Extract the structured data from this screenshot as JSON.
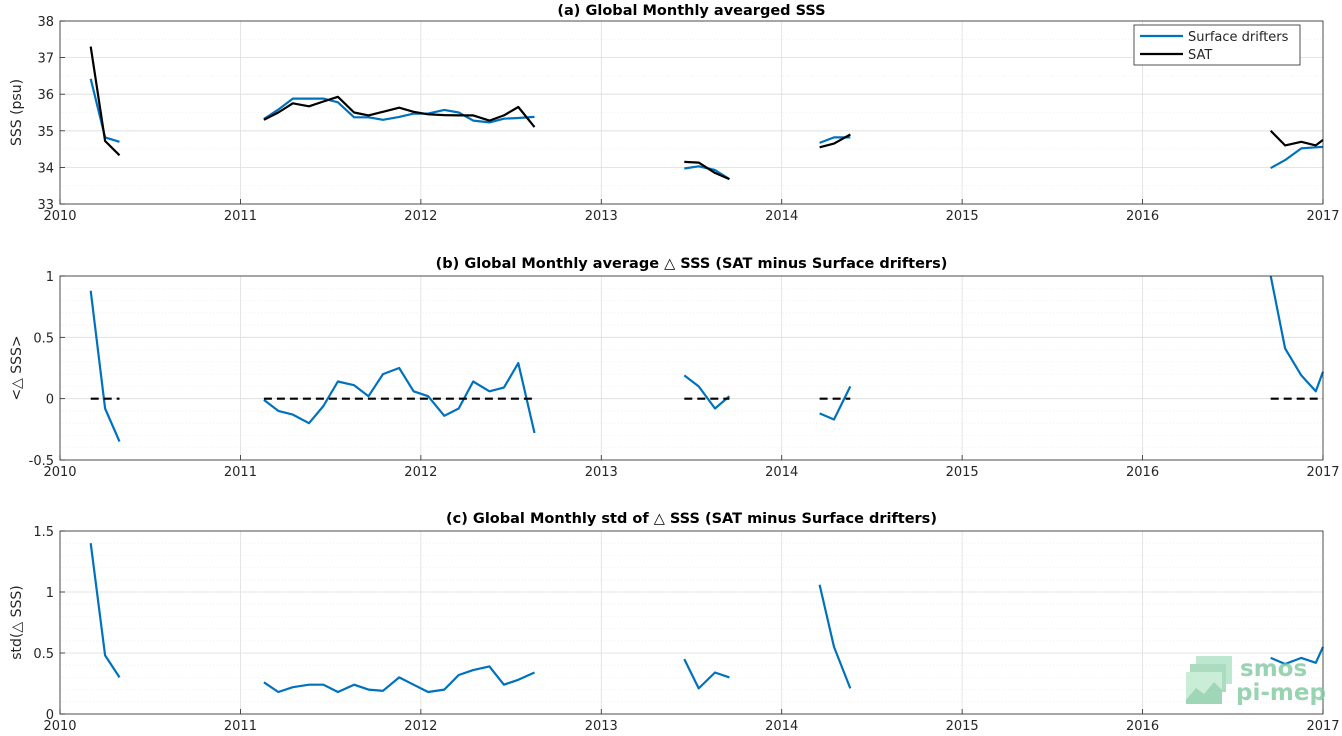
{
  "colors": {
    "drifters": "#0072bd",
    "sat": "#000000",
    "zero": "#000000",
    "grid": "#e6e6e6",
    "logo": "#7fc9a0"
  },
  "logo": {
    "line1": "smos",
    "line2": "pi-mep"
  },
  "chart_data": [
    {
      "type": "line",
      "title": "(a) Global Monthly avearged SSS",
      "ylabel": "SSS (psu)",
      "xlim": [
        2010,
        2017
      ],
      "ylim": [
        33,
        38
      ],
      "xticks": [
        "2010",
        "2011",
        "2012",
        "2013",
        "2014",
        "2015",
        "2016",
        "2017"
      ],
      "yticks": [
        "33",
        "34",
        "35",
        "36",
        "37",
        "38"
      ],
      "grid": true,
      "legend": {
        "placement": "top-right",
        "entries": [
          "Surface drifters",
          "SAT"
        ]
      },
      "series": [
        {
          "name": "Surface drifters",
          "color": "drifters",
          "segments": [
            [
              [
                2010.17,
                36.42
              ],
              [
                2010.25,
                34.82
              ],
              [
                2010.33,
                34.7
              ]
            ],
            [
              [
                2011.13,
                35.32
              ],
              [
                2011.21,
                35.58
              ],
              [
                2011.29,
                35.88
              ],
              [
                2011.38,
                35.88
              ],
              [
                2011.46,
                35.88
              ],
              [
                2011.54,
                35.78
              ],
              [
                2011.63,
                35.37
              ],
              [
                2011.71,
                35.37
              ],
              [
                2011.79,
                35.3
              ],
              [
                2011.88,
                35.38
              ],
              [
                2011.96,
                35.47
              ],
              [
                2012.04,
                35.47
              ],
              [
                2012.13,
                35.57
              ],
              [
                2012.21,
                35.5
              ],
              [
                2012.29,
                35.28
              ],
              [
                2012.38,
                35.23
              ],
              [
                2012.46,
                35.33
              ],
              [
                2012.54,
                35.35
              ],
              [
                2012.63,
                35.38
              ]
            ],
            [
              [
                2013.46,
                33.97
              ],
              [
                2013.54,
                34.03
              ],
              [
                2013.63,
                33.93
              ],
              [
                2013.71,
                33.68
              ]
            ],
            [
              [
                2014.21,
                34.67
              ],
              [
                2014.29,
                34.82
              ],
              [
                2014.38,
                34.82
              ]
            ],
            [
              [
                2016.71,
                33.98
              ],
              [
                2016.79,
                34.2
              ],
              [
                2016.88,
                34.52
              ],
              [
                2016.96,
                34.55
              ],
              [
                2017.0,
                34.56
              ]
            ]
          ]
        },
        {
          "name": "SAT",
          "color": "sat",
          "segments": [
            [
              [
                2010.17,
                37.3
              ],
              [
                2010.25,
                34.72
              ],
              [
                2010.33,
                34.33
              ]
            ],
            [
              [
                2011.13,
                35.3
              ],
              [
                2011.21,
                35.5
              ],
              [
                2011.29,
                35.75
              ],
              [
                2011.38,
                35.67
              ],
              [
                2011.46,
                35.8
              ],
              [
                2011.54,
                35.93
              ],
              [
                2011.63,
                35.5
              ],
              [
                2011.71,
                35.42
              ],
              [
                2011.79,
                35.52
              ],
              [
                2011.88,
                35.63
              ],
              [
                2011.96,
                35.52
              ],
              [
                2012.04,
                35.45
              ],
              [
                2012.13,
                35.43
              ],
              [
                2012.21,
                35.42
              ],
              [
                2012.29,
                35.42
              ],
              [
                2012.38,
                35.28
              ],
              [
                2012.46,
                35.42
              ],
              [
                2012.54,
                35.65
              ],
              [
                2012.63,
                35.1
              ]
            ],
            [
              [
                2013.46,
                34.15
              ],
              [
                2013.54,
                34.13
              ],
              [
                2013.63,
                33.85
              ],
              [
                2013.71,
                33.68
              ]
            ],
            [
              [
                2014.21,
                34.55
              ],
              [
                2014.29,
                34.65
              ],
              [
                2014.38,
                34.9
              ]
            ],
            [
              [
                2016.71,
                35.0
              ],
              [
                2016.79,
                34.6
              ],
              [
                2016.88,
                34.7
              ],
              [
                2016.96,
                34.6
              ],
              [
                2017.0,
                34.75
              ]
            ]
          ]
        }
      ]
    },
    {
      "type": "line",
      "title": "(b) Global Monthly average △ SSS (SAT minus Surface drifters)",
      "ylabel": "<△ SSS>",
      "xlim": [
        2010,
        2017
      ],
      "ylim": [
        -0.5,
        1
      ],
      "xticks": [
        "2010",
        "2011",
        "2012",
        "2013",
        "2014",
        "2015",
        "2016",
        "2017"
      ],
      "yticks": [
        "-0.5",
        "0",
        "0.5",
        "1"
      ],
      "grid": true,
      "series": [
        {
          "name": "",
          "color": "drifters",
          "segments": [
            [
              [
                2010.17,
                0.88
              ],
              [
                2010.25,
                -0.08
              ],
              [
                2010.33,
                -0.35
              ]
            ],
            [
              [
                2011.13,
                -0.01
              ],
              [
                2011.21,
                -0.1
              ],
              [
                2011.29,
                -0.13
              ],
              [
                2011.38,
                -0.2
              ],
              [
                2011.46,
                -0.06
              ],
              [
                2011.54,
                0.14
              ],
              [
                2011.63,
                0.11
              ],
              [
                2011.71,
                0.02
              ],
              [
                2011.79,
                0.2
              ],
              [
                2011.88,
                0.25
              ],
              [
                2011.96,
                0.06
              ],
              [
                2012.04,
                0.02
              ],
              [
                2012.13,
                -0.14
              ],
              [
                2012.21,
                -0.08
              ],
              [
                2012.29,
                0.14
              ],
              [
                2012.38,
                0.06
              ],
              [
                2012.46,
                0.09
              ],
              [
                2012.54,
                0.29
              ],
              [
                2012.63,
                -0.28
              ]
            ],
            [
              [
                2013.46,
                0.19
              ],
              [
                2013.54,
                0.1
              ],
              [
                2013.63,
                -0.08
              ],
              [
                2013.71,
                0.02
              ]
            ],
            [
              [
                2014.21,
                -0.12
              ],
              [
                2014.29,
                -0.17
              ],
              [
                2014.38,
                0.1
              ]
            ],
            [
              [
                2016.71,
                1.0
              ],
              [
                2016.79,
                0.41
              ],
              [
                2016.88,
                0.19
              ],
              [
                2016.96,
                0.06
              ],
              [
                2017.0,
                0.22
              ]
            ]
          ]
        },
        {
          "name": "",
          "color": "zero",
          "dashed": true,
          "segments": [
            [
              [
                2010.17,
                0
              ],
              [
                2010.33,
                0
              ]
            ],
            [
              [
                2011.13,
                0
              ],
              [
                2012.63,
                0
              ]
            ],
            [
              [
                2013.46,
                0
              ],
              [
                2013.71,
                0
              ]
            ],
            [
              [
                2014.21,
                0
              ],
              [
                2014.38,
                0
              ]
            ],
            [
              [
                2016.71,
                0
              ],
              [
                2017.0,
                0
              ]
            ]
          ]
        }
      ]
    },
    {
      "type": "line",
      "title": "(c) Global Monthly std of △ SSS (SAT minus Surface drifters)",
      "ylabel": "std(△ SSS)",
      "xlim": [
        2010,
        2017
      ],
      "ylim": [
        0,
        1.5
      ],
      "xticks": [
        "2010",
        "2011",
        "2012",
        "2013",
        "2014",
        "2015",
        "2016",
        "2017"
      ],
      "yticks": [
        "0",
        "0.5",
        "1",
        "1.5"
      ],
      "grid": true,
      "series": [
        {
          "name": "",
          "color": "drifters",
          "segments": [
            [
              [
                2010.17,
                1.4
              ],
              [
                2010.25,
                0.48
              ],
              [
                2010.33,
                0.3
              ]
            ],
            [
              [
                2011.13,
                0.26
              ],
              [
                2011.21,
                0.18
              ],
              [
                2011.29,
                0.22
              ],
              [
                2011.38,
                0.24
              ],
              [
                2011.46,
                0.24
              ],
              [
                2011.54,
                0.18
              ],
              [
                2011.63,
                0.24
              ],
              [
                2011.71,
                0.2
              ],
              [
                2011.79,
                0.19
              ],
              [
                2011.88,
                0.3
              ],
              [
                2011.96,
                0.24
              ],
              [
                2012.04,
                0.18
              ],
              [
                2012.13,
                0.2
              ],
              [
                2012.21,
                0.32
              ],
              [
                2012.29,
                0.36
              ],
              [
                2012.38,
                0.39
              ],
              [
                2012.46,
                0.24
              ],
              [
                2012.54,
                0.28
              ],
              [
                2012.63,
                0.34
              ]
            ],
            [
              [
                2013.46,
                0.45
              ],
              [
                2013.54,
                0.21
              ],
              [
                2013.63,
                0.34
              ],
              [
                2013.71,
                0.3
              ]
            ],
            [
              [
                2014.21,
                1.06
              ],
              [
                2014.29,
                0.55
              ],
              [
                2014.38,
                0.21
              ]
            ],
            [
              [
                2016.71,
                0.46
              ],
              [
                2016.79,
                0.41
              ],
              [
                2016.88,
                0.46
              ],
              [
                2016.96,
                0.42
              ],
              [
                2017.0,
                0.55
              ]
            ]
          ]
        }
      ]
    }
  ]
}
